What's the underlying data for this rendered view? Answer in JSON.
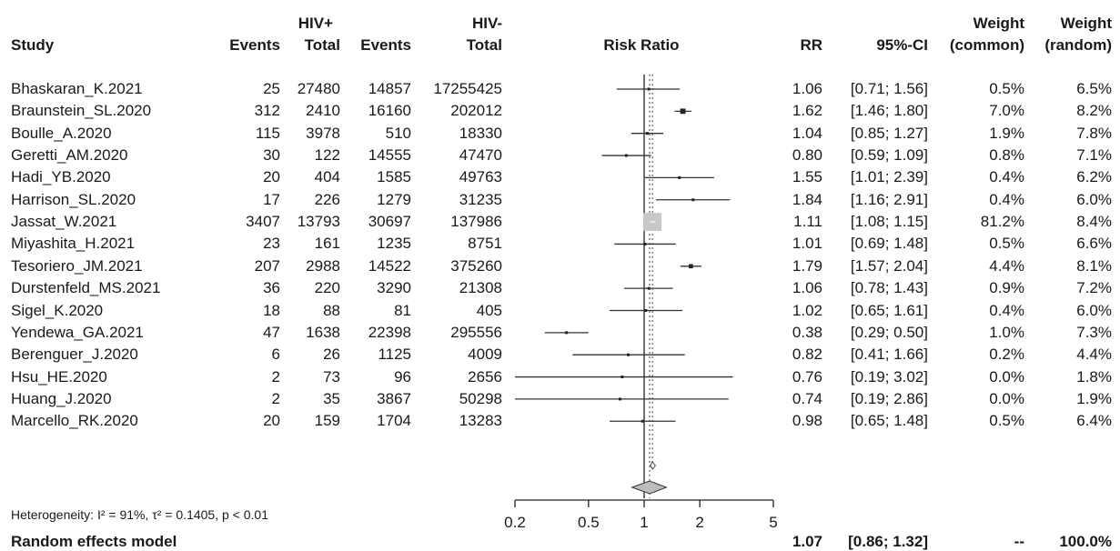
{
  "headers": {
    "study": "Study",
    "hivpos_group": "HIV+",
    "hivneg_group": "HIV-",
    "events": "Events",
    "total": "Total",
    "risk_ratio": "Risk Ratio",
    "rr": "RR",
    "ci": "95%-CI",
    "weight": "Weight",
    "common": "(common)",
    "random": "(random)"
  },
  "studies": [
    {
      "name": "Bhaskaran_K.2021",
      "ev_pos": "25",
      "tot_pos": "27480",
      "ev_neg": "14857",
      "tot_neg": "17255425",
      "rr": "1.06",
      "ci": "[0.71; 1.56]",
      "w_common": "0.5%",
      "w_random": "6.5%"
    },
    {
      "name": "Braunstein_SL.2020",
      "ev_pos": "312",
      "tot_pos": "2410",
      "ev_neg": "16160",
      "tot_neg": "202012",
      "rr": "1.62",
      "ci": "[1.46; 1.80]",
      "w_common": "7.0%",
      "w_random": "8.2%"
    },
    {
      "name": "Boulle_A.2020",
      "ev_pos": "115",
      "tot_pos": "3978",
      "ev_neg": "510",
      "tot_neg": "18330",
      "rr": "1.04",
      "ci": "[0.85; 1.27]",
      "w_common": "1.9%",
      "w_random": "7.8%"
    },
    {
      "name": "Geretti_AM.2020",
      "ev_pos": "30",
      "tot_pos": "122",
      "ev_neg": "14555",
      "tot_neg": "47470",
      "rr": "0.80",
      "ci": "[0.59; 1.09]",
      "w_common": "0.8%",
      "w_random": "7.1%"
    },
    {
      "name": "Hadi_YB.2020",
      "ev_pos": "20",
      "tot_pos": "404",
      "ev_neg": "1585",
      "tot_neg": "49763",
      "rr": "1.55",
      "ci": "[1.01; 2.39]",
      "w_common": "0.4%",
      "w_random": "6.2%"
    },
    {
      "name": "Harrison_SL.2020",
      "ev_pos": "17",
      "tot_pos": "226",
      "ev_neg": "1279",
      "tot_neg": "31235",
      "rr": "1.84",
      "ci": "[1.16; 2.91]",
      "w_common": "0.4%",
      "w_random": "6.0%"
    },
    {
      "name": "Jassat_W.2021",
      "ev_pos": "3407",
      "tot_pos": "13793",
      "ev_neg": "30697",
      "tot_neg": "137986",
      "rr": "1.11",
      "ci": "[1.08; 1.15]",
      "w_common": "81.2%",
      "w_random": "8.4%"
    },
    {
      "name": "Miyashita_H.2021",
      "ev_pos": "23",
      "tot_pos": "161",
      "ev_neg": "1235",
      "tot_neg": "8751",
      "rr": "1.01",
      "ci": "[0.69; 1.48]",
      "w_common": "0.5%",
      "w_random": "6.6%"
    },
    {
      "name": "Tesoriero_JM.2021",
      "ev_pos": "207",
      "tot_pos": "2988",
      "ev_neg": "14522",
      "tot_neg": "375260",
      "rr": "1.79",
      "ci": "[1.57; 2.04]",
      "w_common": "4.4%",
      "w_random": "8.1%"
    },
    {
      "name": "Durstenfeld_MS.2021",
      "ev_pos": "36",
      "tot_pos": "220",
      "ev_neg": "3290",
      "tot_neg": "21308",
      "rr": "1.06",
      "ci": "[0.78; 1.43]",
      "w_common": "0.9%",
      "w_random": "7.2%"
    },
    {
      "name": "Sigel_K.2020",
      "ev_pos": "18",
      "tot_pos": "88",
      "ev_neg": "81",
      "tot_neg": "405",
      "rr": "1.02",
      "ci": "[0.65; 1.61]",
      "w_common": "0.4%",
      "w_random": "6.0%"
    },
    {
      "name": "Yendewa_GA.2021",
      "ev_pos": "47",
      "tot_pos": "1638",
      "ev_neg": "22398",
      "tot_neg": "295556",
      "rr": "0.38",
      "ci": "[0.29; 0.50]",
      "w_common": "1.0%",
      "w_random": "7.3%"
    },
    {
      "name": "Berenguer_J.2020",
      "ev_pos": "6",
      "tot_pos": "26",
      "ev_neg": "1125",
      "tot_neg": "4009",
      "rr": "0.82",
      "ci": "[0.41; 1.66]",
      "w_common": "0.2%",
      "w_random": "4.4%"
    },
    {
      "name": "Hsu_HE.2020",
      "ev_pos": "2",
      "tot_pos": "73",
      "ev_neg": "96",
      "tot_neg": "2656",
      "rr": "0.76",
      "ci": "[0.19; 3.02]",
      "w_common": "0.0%",
      "w_random": "1.8%"
    },
    {
      "name": "Huang_J.2020",
      "ev_pos": "2",
      "tot_pos": "35",
      "ev_neg": "3867",
      "tot_neg": "50298",
      "rr": "0.74",
      "ci": "[0.19; 2.86]",
      "w_common": "0.0%",
      "w_random": "1.9%"
    },
    {
      "name": "Marcello_RK.2020",
      "ev_pos": "20",
      "tot_pos": "159",
      "ev_neg": "1704",
      "tot_neg": "13283",
      "rr": "0.98",
      "ci": "[0.65; 1.48]",
      "w_common": "0.5%",
      "w_random": "6.4%"
    }
  ],
  "summary": {
    "label": "Random effects model",
    "rr": "1.07",
    "ci": "[0.86; 1.32]",
    "w_common": "--",
    "w_random": "100.0%",
    "heterogeneity": "Heterogeneity: I² = 91%, τ² = 0.1405, p < 0.01"
  },
  "colors": {
    "text": "#1a1a1a",
    "line": "#333333",
    "square_big": "#c8c8c8",
    "diamond": "#bdbdbd"
  },
  "chart_data": {
    "type": "forest",
    "scale": "log",
    "xlim": [
      0.2,
      5
    ],
    "x_ticks": [
      0.2,
      0.5,
      1,
      2,
      5
    ],
    "x_tick_labels": [
      "0.2",
      "0.5",
      "1",
      "2",
      "5"
    ],
    "reference_line": 1,
    "common_effect_line": 1.11,
    "random_effect_line": 1.07,
    "studies": [
      {
        "rr": 1.06,
        "lo": 0.71,
        "hi": 1.56,
        "w": 0.5
      },
      {
        "rr": 1.62,
        "lo": 1.46,
        "hi": 1.8,
        "w": 7.0
      },
      {
        "rr": 1.04,
        "lo": 0.85,
        "hi": 1.27,
        "w": 1.9
      },
      {
        "rr": 0.8,
        "lo": 0.59,
        "hi": 1.09,
        "w": 0.8
      },
      {
        "rr": 1.55,
        "lo": 1.01,
        "hi": 2.39,
        "w": 0.4
      },
      {
        "rr": 1.84,
        "lo": 1.16,
        "hi": 2.91,
        "w": 0.4
      },
      {
        "rr": 1.11,
        "lo": 1.08,
        "hi": 1.15,
        "w": 81.2
      },
      {
        "rr": 1.01,
        "lo": 0.69,
        "hi": 1.48,
        "w": 0.5
      },
      {
        "rr": 1.79,
        "lo": 1.57,
        "hi": 2.04,
        "w": 4.4
      },
      {
        "rr": 1.06,
        "lo": 0.78,
        "hi": 1.43,
        "w": 0.9
      },
      {
        "rr": 1.02,
        "lo": 0.65,
        "hi": 1.61,
        "w": 0.4
      },
      {
        "rr": 0.38,
        "lo": 0.29,
        "hi": 0.5,
        "w": 1.0
      },
      {
        "rr": 0.82,
        "lo": 0.41,
        "hi": 1.66,
        "w": 0.2
      },
      {
        "rr": 0.76,
        "lo": 0.19,
        "hi": 3.02,
        "w": 0.0
      },
      {
        "rr": 0.74,
        "lo": 0.19,
        "hi": 2.86,
        "w": 0.0
      },
      {
        "rr": 0.98,
        "lo": 0.65,
        "hi": 1.48,
        "w": 0.5
      }
    ],
    "common_diamond": {
      "rr": 1.11,
      "lo": 1.08,
      "hi": 1.15
    },
    "random_diamond": {
      "rr": 1.07,
      "lo": 0.86,
      "hi": 1.32
    }
  }
}
